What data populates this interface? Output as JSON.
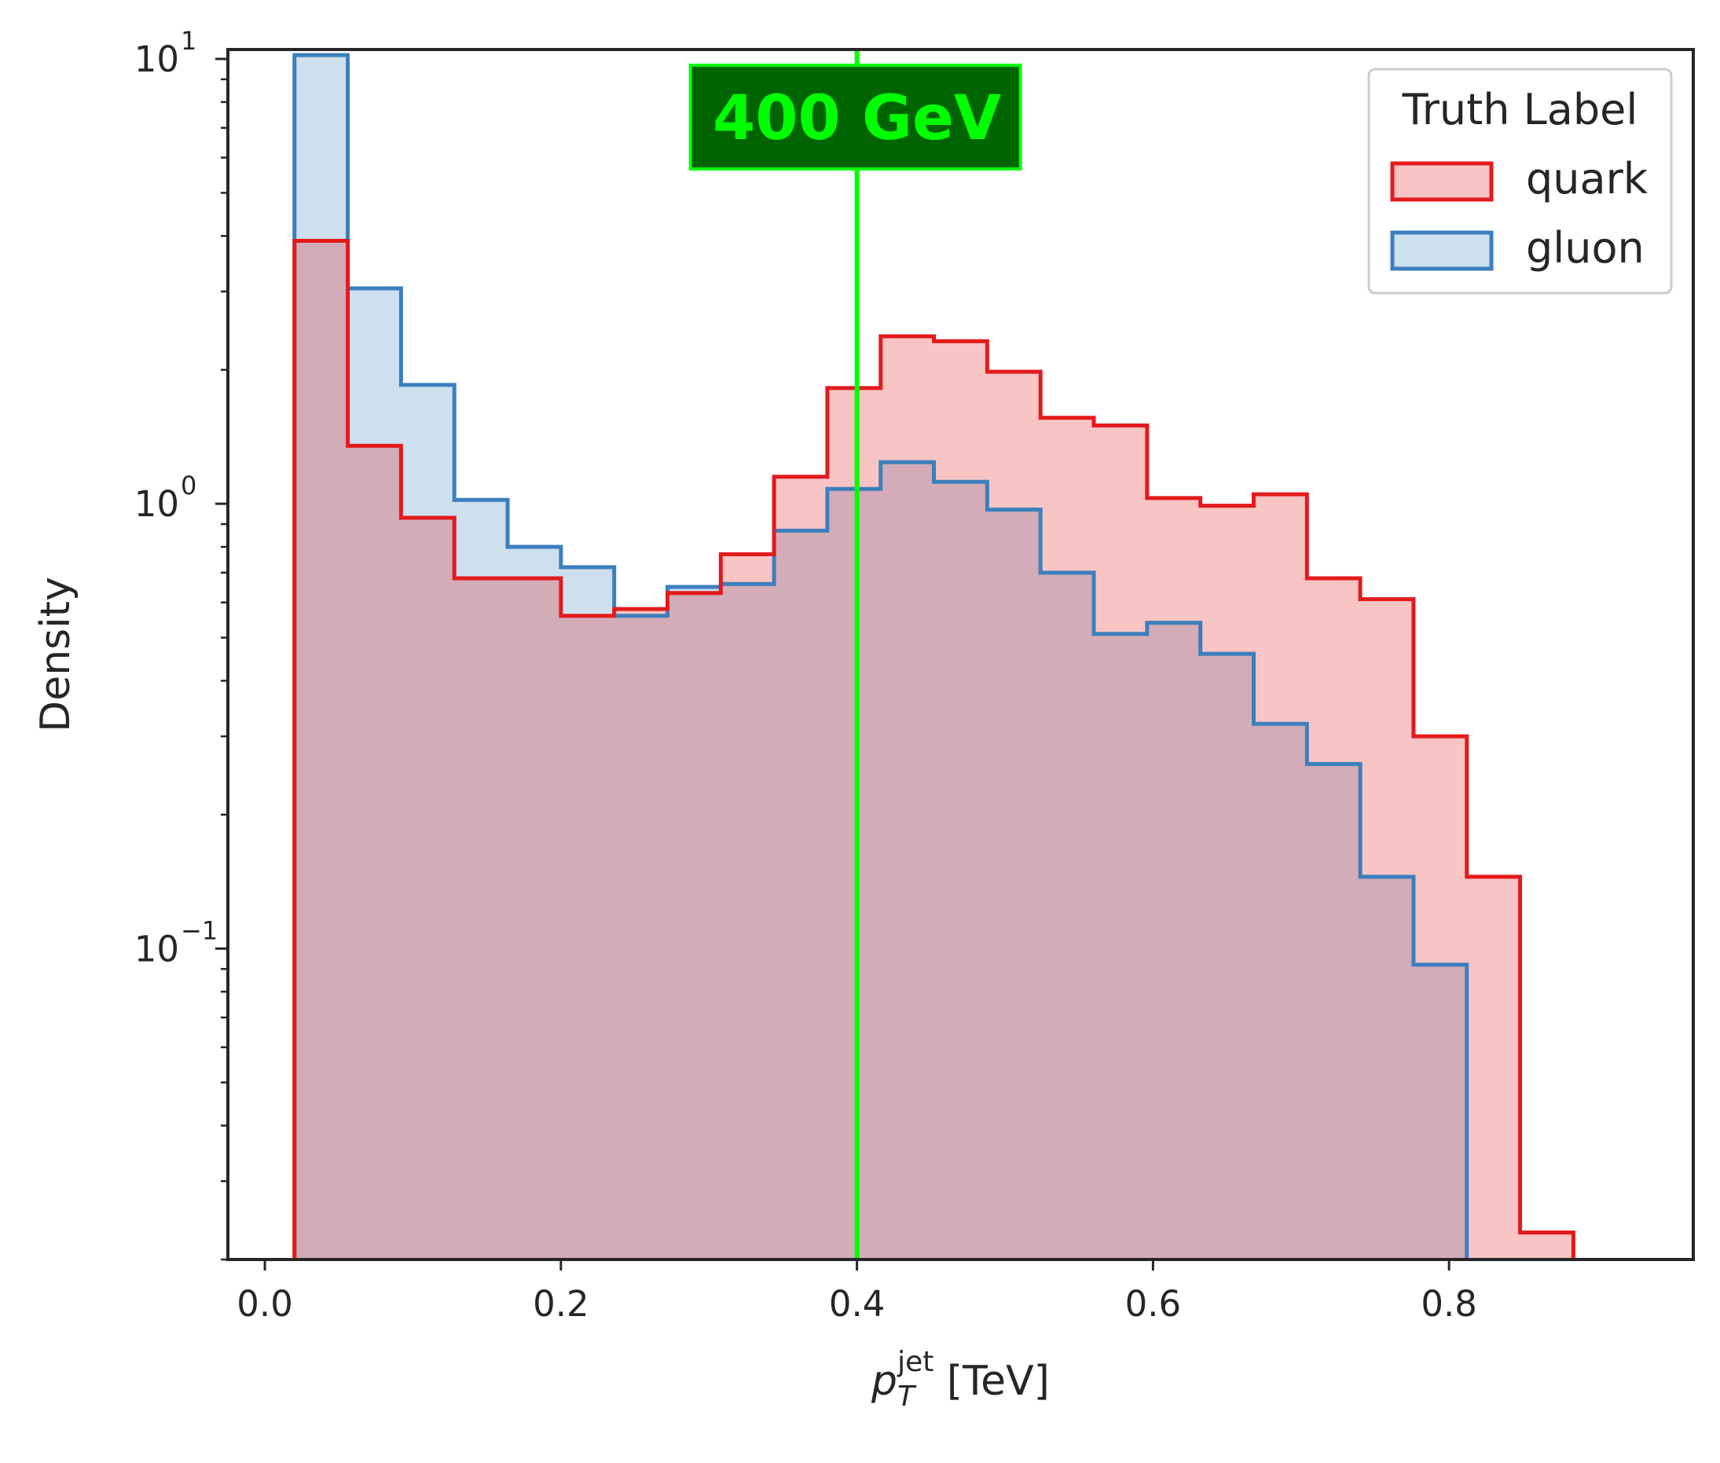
{
  "chart_data": {
    "type": "histogram",
    "xlabel": "p_T^jet [TeV]",
    "xlabel_parts": {
      "base": "p",
      "sub": "T",
      "sup": "jet",
      "unit": "[TeV]"
    },
    "ylabel": "Density",
    "y_scale": "log",
    "xlim": [
      -0.025,
      0.965
    ],
    "ylim": [
      0.02,
      10.5
    ],
    "x_ticks": [
      0.0,
      0.2,
      0.4,
      0.6,
      0.8
    ],
    "x_tick_labels": [
      "0.0",
      "0.2",
      "0.4",
      "0.6",
      "0.8"
    ],
    "y_ticks": [
      0.1,
      1,
      10
    ],
    "y_tick_labels": [
      {
        "base": "10",
        "exp": "−1"
      },
      {
        "base": "10",
        "exp": "0"
      },
      {
        "base": "10",
        "exp": "1"
      }
    ],
    "grid": false,
    "legend": {
      "title": "Truth Label",
      "placement": "top-right",
      "entries": [
        "quark",
        "gluon"
      ]
    },
    "bin_edges": [
      0.02,
      0.056,
      0.092,
      0.128,
      0.164,
      0.2,
      0.236,
      0.272,
      0.308,
      0.344,
      0.38,
      0.416,
      0.452,
      0.488,
      0.524,
      0.56,
      0.596,
      0.632,
      0.668,
      0.704,
      0.74,
      0.776,
      0.812,
      0.848,
      0.884
    ],
    "series": [
      {
        "name": "gluon",
        "color": "#3b7fbd",
        "fill": "rgba(59,127,189,0.25)",
        "values": [
          10.2,
          3.05,
          1.85,
          1.02,
          0.8,
          0.72,
          0.56,
          0.65,
          0.66,
          0.87,
          1.08,
          1.24,
          1.12,
          0.97,
          0.7,
          0.51,
          0.54,
          0.46,
          0.32,
          0.26,
          0.145,
          0.092,
          0.0,
          0.0
        ]
      },
      {
        "name": "quark",
        "color": "#e31a1c",
        "fill": "rgba(227,26,28,0.26)",
        "values": [
          3.9,
          1.35,
          0.93,
          0.68,
          0.68,
          0.56,
          0.58,
          0.63,
          0.77,
          1.15,
          1.82,
          2.38,
          2.32,
          1.98,
          1.56,
          1.5,
          1.03,
          0.99,
          1.05,
          0.68,
          0.61,
          0.3,
          0.145,
          0.023
        ]
      }
    ],
    "annotations": [
      {
        "type": "vline",
        "x": 0.4,
        "color": "#00ff00"
      },
      {
        "type": "text-box",
        "text": "400 GeV",
        "x": 0.4,
        "text_color": "#00ff00",
        "box_color": "#006400"
      }
    ]
  }
}
